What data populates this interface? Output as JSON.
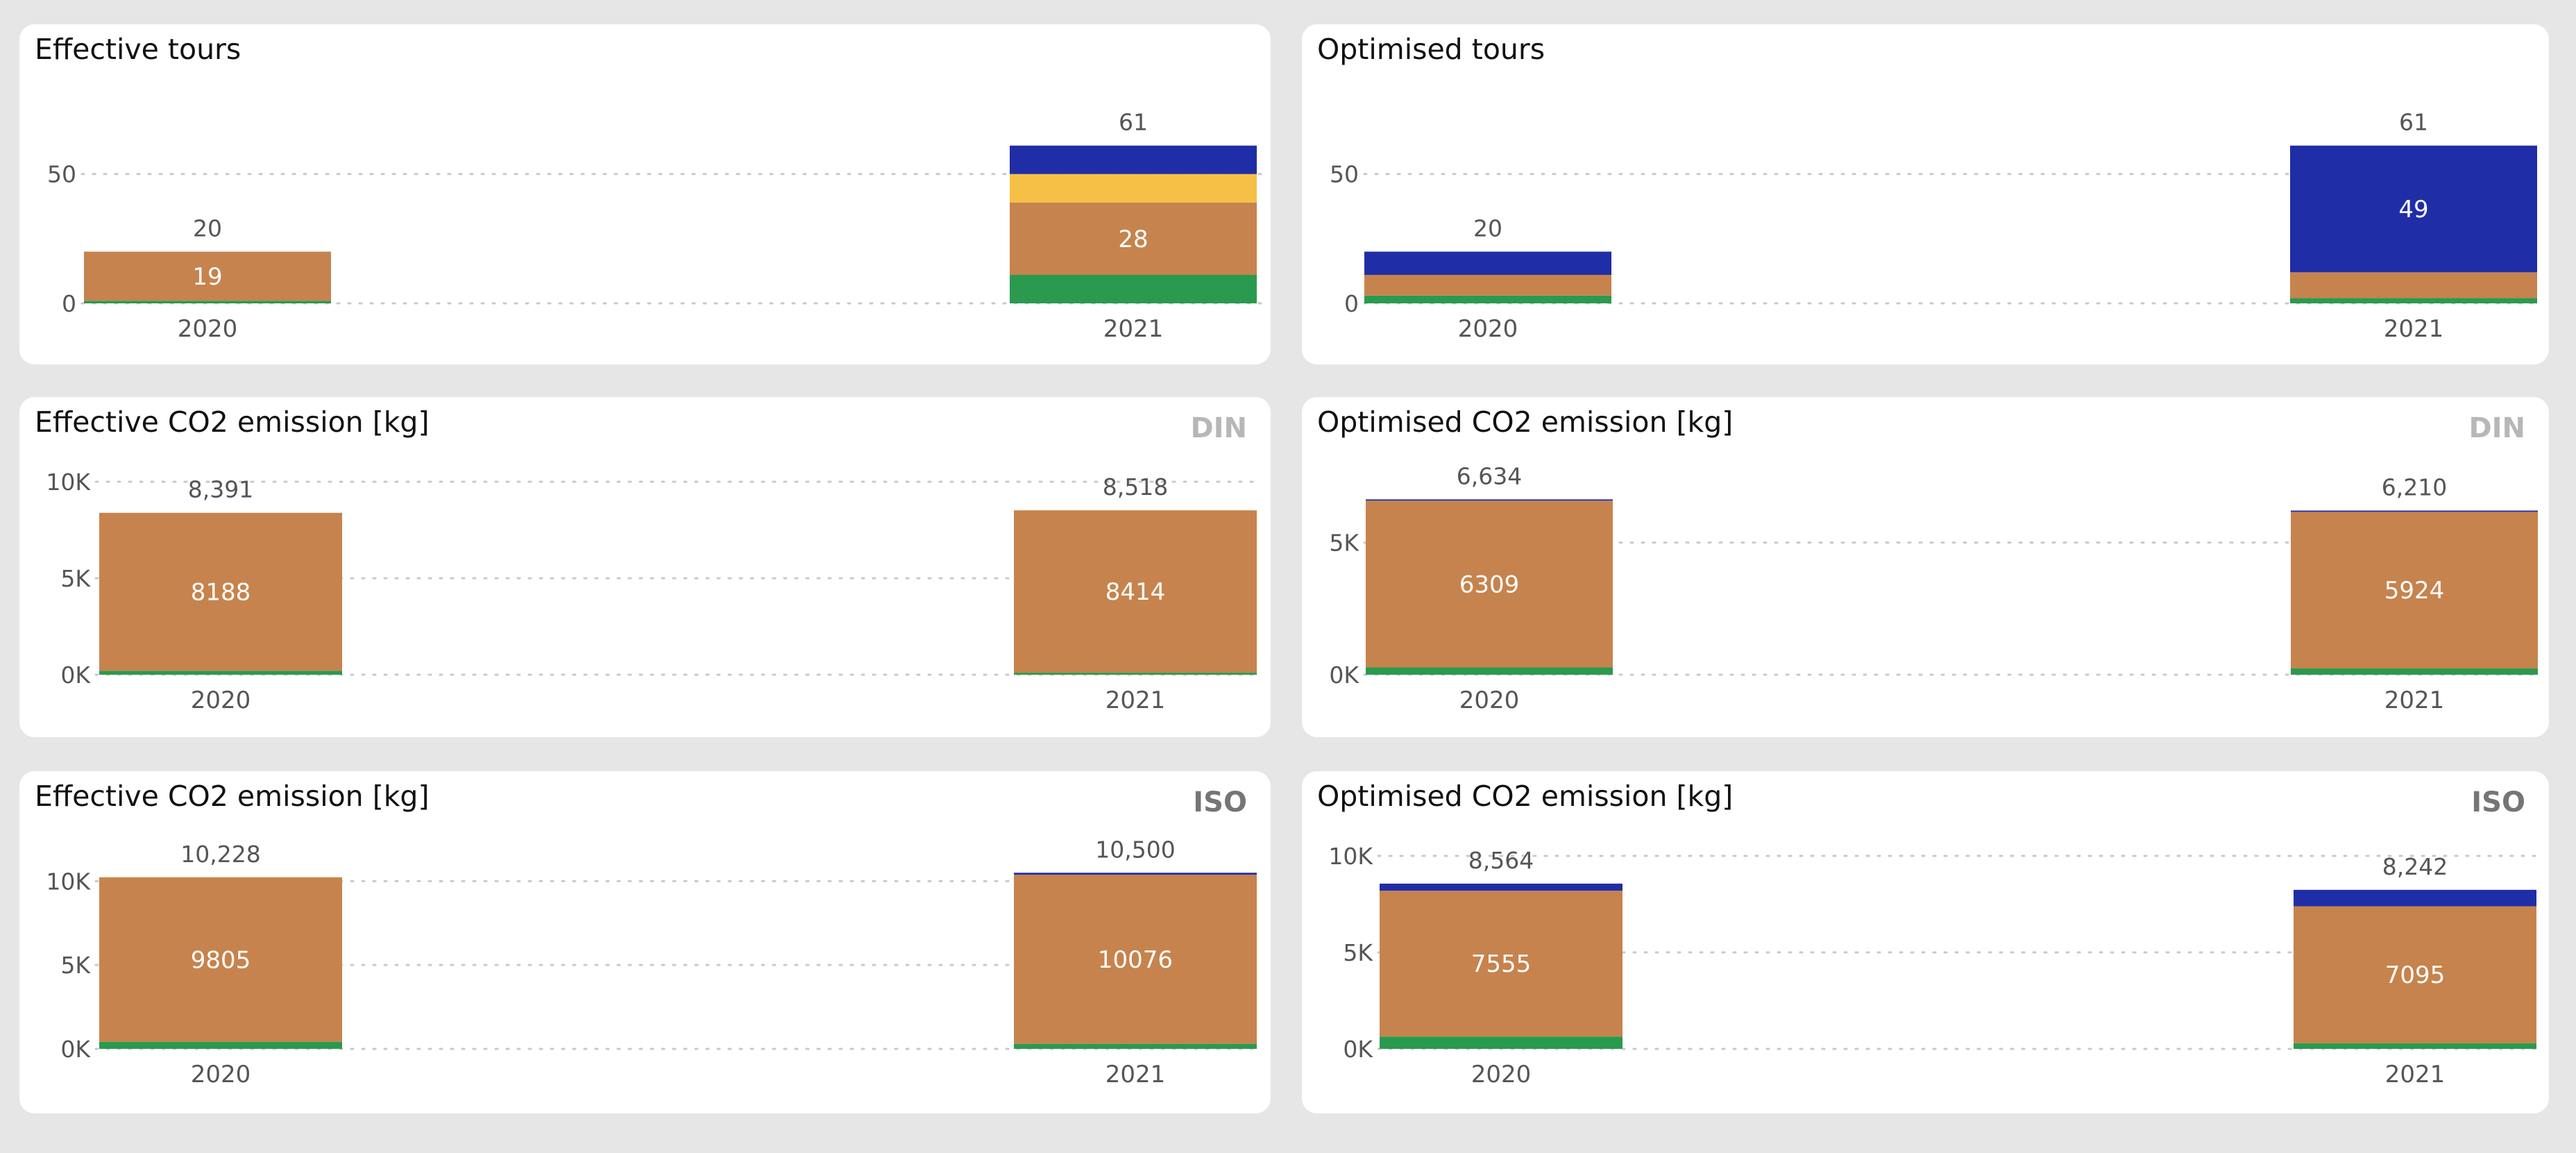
{
  "colors": {
    "green": "#2a9a4f",
    "brown": "#c6834d",
    "yellow": "#f6c046",
    "blue": "#1f2ea6",
    "tick_text": "#555555",
    "label_text": "#555555",
    "inner_label": "#ffffff",
    "grid": "#c9c9c9"
  },
  "panels": [
    {
      "title": "Effective tours",
      "badge": "",
      "chart_data": {
        "type": "bar",
        "stacked": true,
        "categories": [
          "2020",
          "2021"
        ],
        "ylim": [
          0,
          76.5
        ],
        "yticks": [
          {
            "value": 0,
            "label": "0"
          },
          {
            "value": 50,
            "label": "50"
          }
        ],
        "series": [
          {
            "color": "green",
            "values": [
              1,
              11
            ],
            "labels": [
              "",
              ""
            ]
          },
          {
            "color": "brown",
            "values": [
              19,
              28
            ],
            "labels": [
              "19",
              "28"
            ]
          },
          {
            "color": "yellow",
            "values": [
              0,
              11
            ],
            "labels": [
              "",
              ""
            ]
          },
          {
            "color": "blue",
            "values": [
              0,
              11
            ],
            "labels": [
              "",
              ""
            ]
          }
        ],
        "totals": [
          "20",
          "61"
        ],
        "xlabel": "",
        "ylabel": "",
        "title": "Effective tours"
      }
    },
    {
      "title": "Optimised tours",
      "badge": "",
      "chart_data": {
        "type": "bar",
        "stacked": true,
        "categories": [
          "2020",
          "2021"
        ],
        "ylim": [
          0,
          76.5
        ],
        "yticks": [
          {
            "value": 0,
            "label": "0"
          },
          {
            "value": 50,
            "label": "50"
          }
        ],
        "series": [
          {
            "color": "green",
            "values": [
              3,
              2
            ],
            "labels": [
              "",
              ""
            ]
          },
          {
            "color": "brown",
            "values": [
              8,
              10
            ],
            "labels": [
              "",
              ""
            ]
          },
          {
            "color": "blue",
            "values": [
              9,
              49
            ],
            "labels": [
              "",
              "49"
            ]
          }
        ],
        "totals": [
          "20",
          "61"
        ],
        "xlabel": "",
        "ylabel": "",
        "title": "Optimised tours"
      }
    },
    {
      "title": "Effective CO2 emission [kg]",
      "badge": "DIN",
      "chart_data": {
        "type": "bar",
        "stacked": true,
        "categories": [
          "2020",
          "2021"
        ],
        "ylim": [
          0,
          10000
        ],
        "yticks": [
          {
            "value": 0,
            "label": "0K"
          },
          {
            "value": 5000,
            "label": "5K"
          },
          {
            "value": 10000,
            "label": "10K"
          }
        ],
        "series": [
          {
            "color": "green",
            "values": [
              203,
              104
            ],
            "labels": [
              "",
              ""
            ]
          },
          {
            "color": "brown",
            "values": [
              8188,
              8414
            ],
            "labels": [
              "8188",
              "8414"
            ]
          }
        ],
        "totals": [
          "8,391",
          "8,518"
        ],
        "xlabel": "",
        "ylabel": "",
        "title": "Effective CO2 emission [kg]"
      }
    },
    {
      "title": "Optimised CO2 emission [kg]",
      "badge": "DIN",
      "chart_data": {
        "type": "bar",
        "stacked": true,
        "categories": [
          "2020",
          "2021"
        ],
        "ylim": [
          0,
          7300
        ],
        "yticks": [
          {
            "value": 0,
            "label": "0K"
          },
          {
            "value": 5000,
            "label": "5K"
          }
        ],
        "series": [
          {
            "color": "green",
            "values": [
              275,
              236
            ],
            "labels": [
              "",
              ""
            ]
          },
          {
            "color": "brown",
            "values": [
              6309,
              5924
            ],
            "labels": [
              "6309",
              "5924"
            ]
          },
          {
            "color": "blue",
            "values": [
              50,
              50
            ],
            "labels": [
              "",
              ""
            ]
          }
        ],
        "totals": [
          "6,634",
          "6,210"
        ],
        "xlabel": "",
        "ylabel": "",
        "title": "Optimised CO2 emission [kg]"
      }
    },
    {
      "title": "Effective CO2 emission [kg]",
      "badge": "ISO",
      "chart_data": {
        "type": "bar",
        "stacked": true,
        "categories": [
          "2020",
          "2021"
        ],
        "ylim": [
          0,
          12000
        ],
        "yticks": [
          {
            "value": 0,
            "label": "0K"
          },
          {
            "value": 5000,
            "label": "5K"
          },
          {
            "value": 10000,
            "label": "10K"
          }
        ],
        "series": [
          {
            "color": "green",
            "values": [
              423,
              304
            ],
            "labels": [
              "",
              ""
            ]
          },
          {
            "color": "brown",
            "values": [
              9805,
              10076
            ],
            "labels": [
              "9805",
              "10076"
            ]
          },
          {
            "color": "blue",
            "values": [
              0,
              120
            ],
            "labels": [
              "",
              ""
            ]
          }
        ],
        "totals": [
          "10,228",
          "10,500"
        ],
        "xlabel": "",
        "ylabel": "",
        "title": "Effective CO2 emission [kg]"
      }
    },
    {
      "title": "Optimised CO2 emission [kg]",
      "badge": "ISO",
      "chart_data": {
        "type": "bar",
        "stacked": true,
        "categories": [
          "2020",
          "2021"
        ],
        "ylim": [
          0,
          10000
        ],
        "yticks": [
          {
            "value": 0,
            "label": "0K"
          },
          {
            "value": 5000,
            "label": "5K"
          },
          {
            "value": 10000,
            "label": "10K"
          }
        ],
        "series": [
          {
            "color": "green",
            "values": [
              640,
              296
            ],
            "labels": [
              "",
              ""
            ]
          },
          {
            "color": "brown",
            "values": [
              7555,
              7095
            ],
            "labels": [
              "7555",
              "7095"
            ]
          },
          {
            "color": "blue",
            "values": [
              369,
              851
            ],
            "labels": [
              "",
              ""
            ]
          }
        ],
        "totals": [
          "8,564",
          "8,242"
        ],
        "xlabel": "",
        "ylabel": "",
        "title": "Optimised CO2 emission [kg]"
      }
    }
  ]
}
